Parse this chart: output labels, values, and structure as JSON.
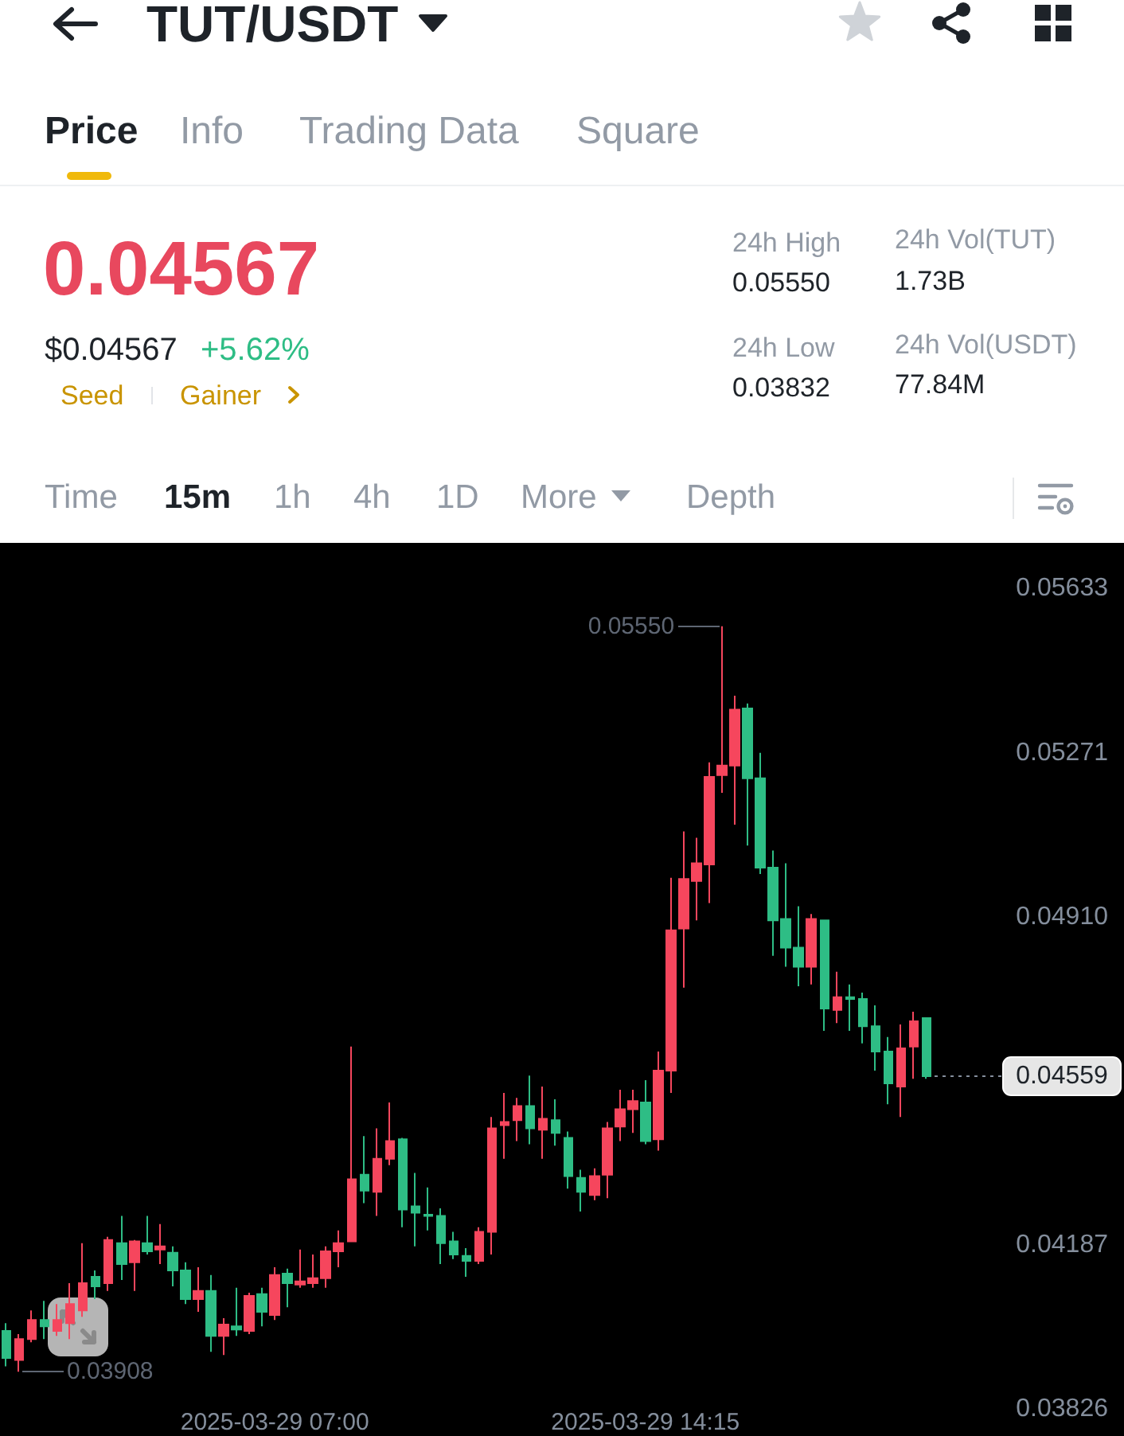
{
  "chart_data": {
    "type": "candlestick",
    "title": "TUT/USDT",
    "annotations": [
      "Price",
      "Info",
      "Trading Data",
      "Square",
      "0.04567",
      "$0.04567",
      "+5.62%",
      "Seed",
      "Gainer",
      "24h High",
      "0.05550",
      "24h Low",
      "0.03832",
      "24h Vol(TUT)",
      "1.73B",
      "24h Vol(USDT)",
      "77.84M",
      "Time",
      "15m",
      "1h",
      "4h",
      "1D",
      "More",
      "Depth",
      "0.05550",
      "0.03908"
    ],
    "categories": [
      null,
      null,
      null,
      null,
      null,
      null,
      null,
      null,
      null,
      null,
      null,
      null,
      null,
      null,
      null,
      null,
      null,
      null,
      null,
      null,
      null,
      "2025-03-29 07:00",
      null,
      null,
      null,
      null,
      null,
      null,
      null,
      null,
      null,
      null,
      null,
      null,
      null,
      null,
      null,
      null,
      null,
      null,
      null,
      null,
      null,
      null,
      null,
      null,
      null,
      null,
      null,
      null,
      "2025-03-29 14:15",
      null,
      null,
      null,
      null,
      null,
      null,
      null,
      null,
      null,
      null,
      null,
      null,
      null,
      null,
      null,
      null,
      null,
      null,
      null,
      null,
      null,
      null
    ],
    "ohlc": [
      [
        0.03998,
        0.04015,
        0.0392,
        0.03938
      ],
      [
        0.03934,
        0.03991,
        0.03908,
        0.0398
      ],
      [
        0.0398,
        0.04043,
        0.03973,
        0.04022
      ],
      [
        0.04022,
        0.04064,
        0.0398,
        0.04008
      ],
      [
        0.03998,
        0.04057,
        0.03987,
        0.04022
      ],
      [
        0.04015,
        0.04103,
        0.0398,
        0.04057
      ],
      [
        0.04043,
        0.04191,
        0.04029,
        0.04103
      ],
      [
        0.04117,
        0.04131,
        0.04068,
        0.04096
      ],
      [
        0.04103,
        0.04205,
        0.04086,
        0.04198
      ],
      [
        0.04191,
        0.04251,
        0.0411,
        0.04145
      ],
      [
        0.04149,
        0.04198,
        0.04086,
        0.04195
      ],
      [
        0.04191,
        0.04251,
        0.04166,
        0.04173
      ],
      [
        0.04177,
        0.04233,
        0.04145,
        0.04184
      ],
      [
        0.0417,
        0.04184,
        0.04096,
        0.04131
      ],
      [
        0.04131,
        0.04149,
        0.04057,
        0.04068
      ],
      [
        0.04068,
        0.04138,
        0.0404,
        0.04086
      ],
      [
        0.04086,
        0.04121,
        0.03952,
        0.03987
      ],
      [
        0.03987,
        0.04026,
        0.03945,
        0.04012
      ],
      [
        0.04008,
        0.04093,
        0.03987,
        0.04001
      ],
      [
        0.03998,
        0.04082,
        0.03991,
        0.04075
      ],
      [
        0.04079,
        0.04093,
        0.04008,
        0.0404
      ],
      [
        0.04033,
        0.04138,
        0.04022,
        0.04121
      ],
      [
        0.04124,
        0.04135,
        0.0405,
        0.04103
      ],
      [
        0.041,
        0.04177,
        0.04093,
        0.04107
      ],
      [
        0.04103,
        0.04166,
        0.04093,
        0.04114
      ],
      [
        0.04114,
        0.04184,
        0.04093,
        0.04173
      ],
      [
        0.04173,
        0.04219,
        0.04138,
        0.04191
      ],
      [
        0.04195,
        0.04624,
        0.04195,
        0.04332
      ],
      [
        0.04342,
        0.04427,
        0.04279,
        0.04307
      ],
      [
        0.04304,
        0.04444,
        0.04251,
        0.04377
      ],
      [
        0.04377,
        0.04501,
        0.04363,
        0.04416
      ],
      [
        0.0442,
        0.04423,
        0.04226,
        0.04265
      ],
      [
        0.04272,
        0.04346,
        0.04184,
        0.04258
      ],
      [
        0.04254,
        0.04314,
        0.04219,
        0.04251
      ],
      [
        0.04251,
        0.04268,
        0.04145,
        0.04191
      ],
      [
        0.04195,
        0.04216,
        0.04156,
        0.04166
      ],
      [
        0.04163,
        0.0418,
        0.04117,
        0.04152
      ],
      [
        0.04152,
        0.04226,
        0.04145,
        0.04216
      ],
      [
        0.04216,
        0.04469,
        0.04166,
        0.04444
      ],
      [
        0.04451,
        0.04522,
        0.04377,
        0.04458
      ],
      [
        0.04462,
        0.04511,
        0.04416,
        0.04493
      ],
      [
        0.04493,
        0.0456,
        0.04409,
        0.04444
      ],
      [
        0.04441,
        0.04536,
        0.04377,
        0.04465
      ],
      [
        0.04462,
        0.04508,
        0.04406,
        0.04434
      ],
      [
        0.04423,
        0.04437,
        0.04311,
        0.04339
      ],
      [
        0.04335,
        0.04353,
        0.04261,
        0.04304
      ],
      [
        0.04297,
        0.04356,
        0.04286,
        0.04339
      ],
      [
        0.04342,
        0.04458,
        0.0429,
        0.04444
      ],
      [
        0.04448,
        0.04529,
        0.04416,
        0.04486
      ],
      [
        0.04486,
        0.04529,
        0.04434,
        0.04504
      ],
      [
        0.04501,
        0.0455,
        0.04409,
        0.04416
      ],
      [
        0.0442,
        0.04613,
        0.04395,
        0.04571
      ],
      [
        0.04571,
        0.04996,
        0.04522,
        0.0488
      ],
      [
        0.04884,
        0.05098,
        0.04754,
        0.04993
      ],
      [
        0.04989,
        0.05084,
        0.04902,
        0.05028
      ],
      [
        0.05025,
        0.0525,
        0.0494,
        0.05218
      ],
      [
        0.05222,
        0.0555,
        0.05183,
        0.05243
      ],
      [
        0.05243,
        0.05397,
        0.05113,
        0.05366
      ],
      [
        0.05369,
        0.0538,
        0.05067,
        0.05215
      ],
      [
        0.05215,
        0.05271,
        0.05004,
        0.05018
      ],
      [
        0.05018,
        0.05056,
        0.04824,
        0.04902
      ],
      [
        0.04905,
        0.05028,
        0.048,
        0.04842
      ],
      [
        0.04842,
        0.04933,
        0.04757,
        0.048
      ],
      [
        0.048,
        0.04916,
        0.04761,
        0.04905
      ],
      [
        0.04902,
        0.04902,
        0.04659,
        0.04708
      ],
      [
        0.04705,
        0.04789,
        0.04676,
        0.04733
      ],
      [
        0.04733,
        0.04761,
        0.04659,
        0.04729
      ],
      [
        0.04729,
        0.04743,
        0.04631,
        0.04669
      ],
      [
        0.04669,
        0.04715,
        0.04571,
        0.04613
      ],
      [
        0.04613,
        0.04645,
        0.04497,
        0.04543
      ],
      [
        0.04536,
        0.04673,
        0.04469,
        0.0462
      ],
      [
        0.04624,
        0.04701,
        0.04553,
        0.0468
      ],
      [
        0.04687,
        0.04687,
        0.04553,
        0.04559
      ]
    ],
    "colors": [
      "#2ebd85",
      "#f6465d",
      "#f6465d",
      "#2ebd85",
      "#f6465d",
      "#f6465d",
      "#f6465d",
      "#2ebd85",
      "#f6465d",
      "#2ebd85",
      "#f6465d",
      "#2ebd85",
      "#f6465d",
      "#2ebd85",
      "#2ebd85",
      "#f6465d",
      "#2ebd85",
      "#f6465d",
      "#2ebd85",
      "#f6465d",
      "#2ebd85",
      "#f6465d",
      "#2ebd85",
      "#f6465d",
      "#f6465d",
      "#f6465d",
      "#f6465d",
      "#f6465d",
      "#2ebd85",
      "#f6465d",
      "#f6465d",
      "#2ebd85",
      "#2ebd85",
      "#2ebd85",
      "#2ebd85",
      "#2ebd85",
      "#2ebd85",
      "#f6465d",
      "#f6465d",
      "#f6465d",
      "#f6465d",
      "#2ebd85",
      "#f6465d",
      "#2ebd85",
      "#2ebd85",
      "#2ebd85",
      "#f6465d",
      "#f6465d",
      "#f6465d",
      "#f6465d",
      "#2ebd85",
      "#f6465d",
      "#f6465d",
      "#f6465d",
      "#f6465d",
      "#f6465d",
      "#f6465d",
      "#f6465d",
      "#2ebd85",
      "#2ebd85",
      "#2ebd85",
      "#2ebd85",
      "#2ebd85",
      "#f6465d",
      "#2ebd85",
      "#f6465d",
      "#2ebd85",
      "#2ebd85",
      "#2ebd85",
      "#2ebd85",
      "#f6465d",
      "#f6465d",
      "#2ebd85"
    ],
    "ylim": [
      0.03826,
      0.0573
    ],
    "yticks": [
      0.03826,
      0.04187,
      {
        "value": 0.0491,
        "label": "0.04910"
      },
      0.05271,
      0.05633
    ],
    "ref_lines": [
      {
        "axis": "y",
        "value": 0.04559,
        "label": "0.04559",
        "line_style": "dotted"
      }
    ]
  }
}
